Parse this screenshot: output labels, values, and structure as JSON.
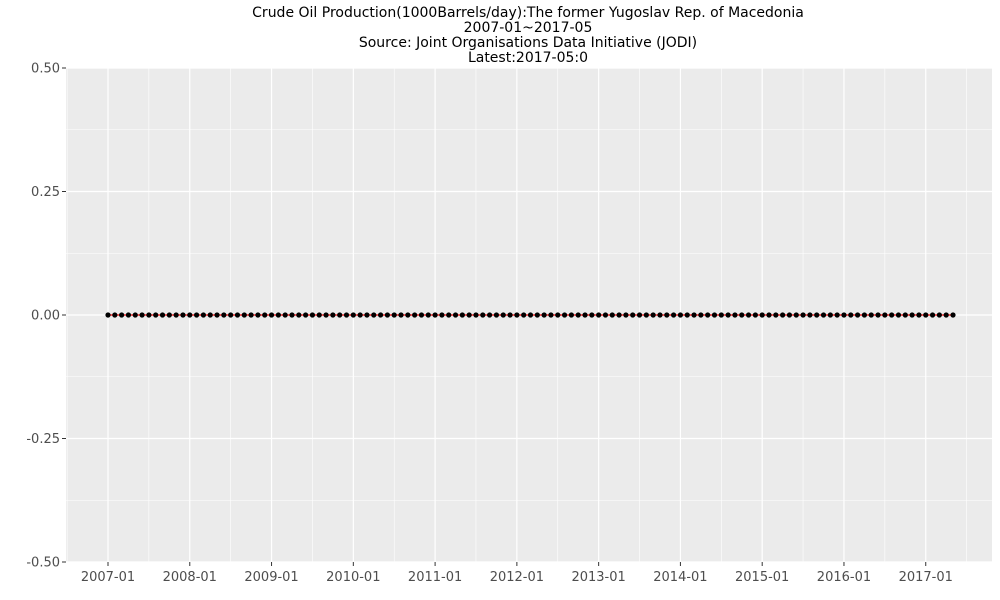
{
  "chart_data": {
    "type": "line",
    "title_lines": [
      "Crude Oil Production(1000Barrels/day):The former Yugoslav Rep. of Macedonia",
      "2007-01~2017-05",
      "Source: Joint Organisations Data Initiative (JODI)",
      "Latest:2017-05:0"
    ],
    "x_start": "2007-01",
    "x_end": "2017-05",
    "x_ticks": [
      "2007-01",
      "2008-01",
      "2009-01",
      "2010-01",
      "2011-01",
      "2012-01",
      "2013-01",
      "2014-01",
      "2015-01",
      "2016-01",
      "2017-01"
    ],
    "y_ticks": [
      "0.50",
      "0.25",
      "0.00",
      "-0.25",
      "-0.50"
    ],
    "ylim": [
      -0.5,
      0.5
    ],
    "series": [
      {
        "constant_value": 0,
        "line_color": "#ff0000",
        "point_color": "#000000"
      }
    ],
    "grid": true,
    "panel_background": "#ebebeb",
    "grid_color": "#ffffff"
  }
}
